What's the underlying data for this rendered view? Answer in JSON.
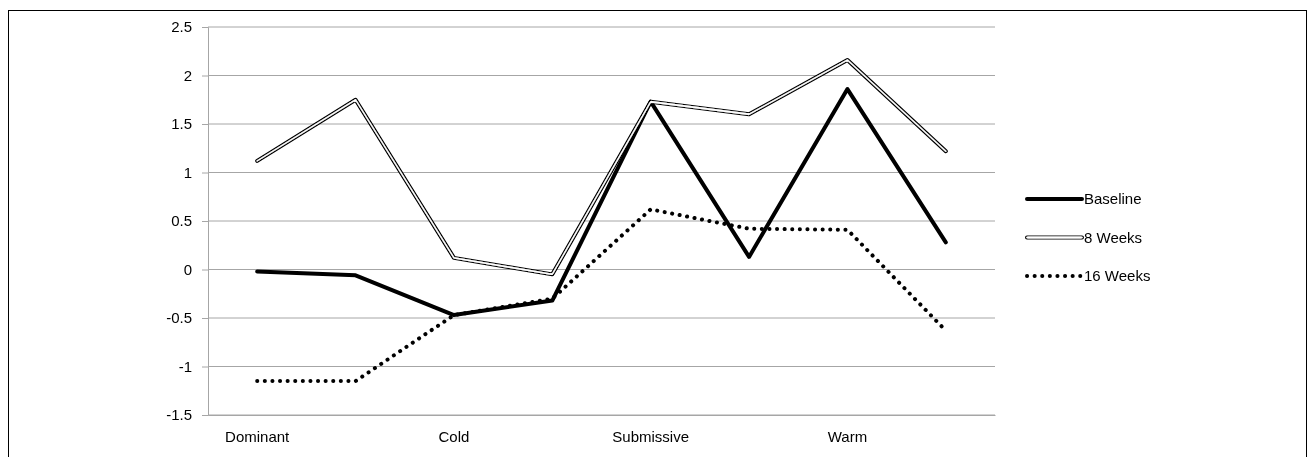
{
  "chart_data": {
    "type": "line",
    "categories": [
      "Dominant",
      null,
      "Cold",
      null,
      "Submissive",
      null,
      "Warm",
      null
    ],
    "series": [
      {
        "name": "Baseline",
        "color": "#000000",
        "line_style": "solid",
        "values": [
          -0.02,
          -0.06,
          -0.47,
          -0.32,
          1.73,
          0.13,
          1.86,
          0.28
        ]
      },
      {
        "name": "8 Weeks",
        "color": "#000000",
        "line_style": "solid",
        "values": [
          1.12,
          1.75,
          0.12,
          -0.05,
          1.73,
          1.6,
          2.16,
          1.22
        ]
      },
      {
        "name": "16 Weeks",
        "color": "#000000",
        "line_style": "dotted",
        "values": [
          -1.15,
          -1.15,
          -0.47,
          -0.3,
          0.62,
          0.42,
          0.41,
          -0.63
        ]
      }
    ],
    "ylim": [
      -1.5,
      2.5
    ],
    "yticks": [
      -1.5,
      -1,
      -0.5,
      0,
      0.5,
      1,
      1.5,
      2,
      2.5
    ],
    "grid": "y",
    "legend": "right",
    "marker": "none"
  }
}
